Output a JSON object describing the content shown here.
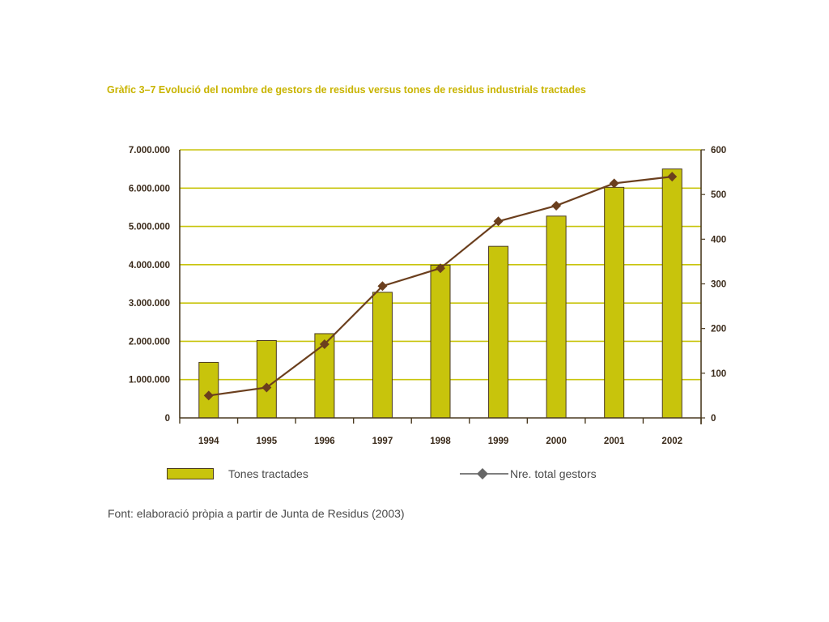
{
  "title": "Gràfic 3–7 Evolució del nombre de gestors de residus versus tones de residus industrials tractades",
  "source_note": "Font: elaboració pròpia a partir de Junta de Residus (2003)",
  "colors": {
    "bar_fill": "#c8c40c",
    "bar_stroke": "#4a3a20",
    "line": "#6b3f1e",
    "marker": "#6b3f1e",
    "grid": "#c8c40c",
    "axis": "#4a3a20"
  },
  "chart_data": {
    "type": "bar",
    "title": "Gràfic 3–7 Evolució del nombre de gestors de residus versus tones de residus industrials tractades",
    "categories": [
      "1994",
      "1995",
      "1996",
      "1997",
      "1998",
      "1999",
      "2000",
      "2001",
      "2002"
    ],
    "series": [
      {
        "name": "Tones tractades",
        "type": "bar",
        "axis": "left",
        "values": [
          1450000,
          2020000,
          2200000,
          3280000,
          3990000,
          4480000,
          5270000,
          6020000,
          6500000
        ]
      },
      {
        "name": "Nre. total gestors",
        "type": "line",
        "axis": "right",
        "values": [
          50,
          68,
          165,
          295,
          335,
          440,
          475,
          525,
          540
        ]
      }
    ],
    "y_left": {
      "min": 0,
      "max": 7000000,
      "ticks": [
        0,
        1000000,
        2000000,
        3000000,
        4000000,
        5000000,
        6000000,
        7000000
      ],
      "tick_labels": [
        "0",
        "1.000.000",
        "2.000.000",
        "3.000.000",
        "4.000.000",
        "5.000.000",
        "6.000.000",
        "7.000.000"
      ]
    },
    "y_right": {
      "min": 0,
      "max": 600,
      "ticks": [
        0,
        100,
        200,
        300,
        400,
        500,
        600
      ],
      "tick_labels": [
        "0",
        "100",
        "200",
        "300",
        "400",
        "500",
        "600"
      ]
    },
    "grid": true,
    "legend_position": "bottom"
  }
}
